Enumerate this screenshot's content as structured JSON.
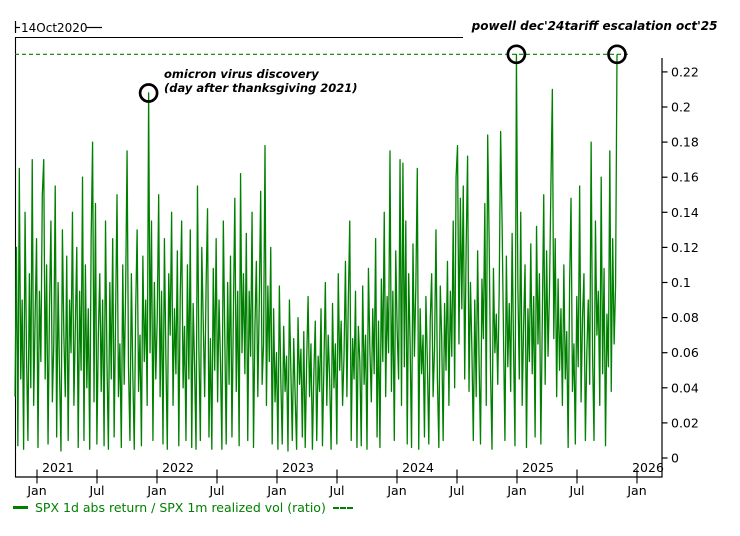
{
  "range_start": {
    "label": "14Oct2020"
  },
  "legend": {
    "label": "SPX 1d abs return / SPX 1m realized vol (ratio)"
  },
  "colors": {
    "series": "#008000",
    "reference_line": "#008000",
    "annotation_ring": "#000000",
    "axis": "#000000"
  },
  "chart_data": {
    "type": "line",
    "title": "",
    "xlabel": "",
    "ylabel": "",
    "x_start_label": "14Oct2020",
    "x_end_label": "oct'25",
    "series": [
      {
        "name": "SPX 1d abs return / SPX 1m realized vol (ratio)",
        "color": "#008000",
        "values": [
          0.035,
          0.12,
          0.007,
          0.165,
          0.045,
          0.09,
          0.005,
          0.14,
          0.06,
          0.01,
          0.105,
          0.04,
          0.17,
          0.03,
          0.08,
          0.125,
          0.006,
          0.095,
          0.055,
          0.15,
          0.17,
          0.045,
          0.11,
          0.008,
          0.085,
          0.135,
          0.032,
          0.065,
          0.155,
          0.012,
          0.1,
          0.048,
          0.004,
          0.13,
          0.07,
          0.035,
          0.115,
          0.01,
          0.09,
          0.06,
          0.14,
          0.03,
          0.075,
          0.12,
          0.006,
          0.095,
          0.05,
          0.16,
          0.01,
          0.11,
          0.04,
          0.085,
          0.005,
          0.125,
          0.18,
          0.032,
          0.145,
          0.008,
          0.07,
          0.105,
          0.038,
          0.09,
          0.007,
          0.135,
          0.055,
          0.005,
          0.1,
          0.045,
          0.125,
          0.012,
          0.08,
          0.15,
          0.035,
          0.065,
          0.006,
          0.11,
          0.042,
          0.095,
          0.175,
          0.052,
          0.01,
          0.105,
          0.048,
          0.005,
          0.085,
          0.13,
          0.038,
          0.07,
          0.007,
          0.115,
          0.055,
          0.09,
          0.03,
          0.208,
          0.06,
          0.135,
          0.01,
          0.1,
          0.045,
          0.08,
          0.15,
          0.035,
          0.095,
          0.008,
          0.125,
          0.058,
          0.005,
          0.105,
          0.07,
          0.14,
          0.03,
          0.085,
          0.048,
          0.118,
          0.007,
          0.092,
          0.135,
          0.04,
          0.075,
          0.01,
          0.11,
          0.045,
          0.13,
          0.006,
          0.088,
          0.052,
          0.005,
          0.155,
          0.062,
          0.01,
          0.12,
          0.078,
          0.035,
          0.098,
          0.142,
          0.012,
          0.068,
          0.005,
          0.108,
          0.05,
          0.125,
          0.032,
          0.09,
          0.055,
          0.005,
          0.135,
          0.07,
          0.008,
          0.1,
          0.042,
          0.115,
          0.012,
          0.082,
          0.148,
          0.038,
          0.095,
          0.007,
          0.162,
          0.06,
          0.105,
          0.048,
          0.128,
          0.01,
          0.095,
          0.058,
          0.14,
          0.006,
          0.075,
          0.112,
          0.035,
          0.088,
          0.152,
          0.042,
          0.065,
          0.178,
          0.03,
          0.098,
          0.055,
          0.12,
          0.008,
          0.085,
          0.032,
          0.06,
          0.005,
          0.098,
          0.045,
          0.008,
          0.075,
          0.038,
          0.058,
          0.004,
          0.09,
          0.05,
          0.01,
          0.068,
          0.035,
          0.005,
          0.08,
          0.042,
          0.062,
          0.012,
          0.072,
          0.006,
          0.055,
          0.092,
          0.035,
          0.065,
          0.005,
          0.048,
          0.078,
          0.01,
          0.058,
          0.038,
          0.085,
          0.007,
          0.052,
          0.1,
          0.03,
          0.07,
          0.045,
          0.005,
          0.088,
          0.04,
          0.065,
          0.008,
          0.105,
          0.05,
          0.078,
          0.03,
          0.058,
          0.112,
          0.035,
          0.09,
          0.135,
          0.01,
          0.068,
          0.045,
          0.095,
          0.006,
          0.075,
          0.055,
          0.007,
          0.098,
          0.042,
          0.07,
          0.005,
          0.108,
          0.062,
          0.032,
          0.085,
          0.048,
          0.125,
          0.012,
          0.078,
          0.006,
          0.102,
          0.055,
          0.14,
          0.035,
          0.092,
          0.06,
          0.175,
          0.038,
          0.095,
          0.01,
          0.118,
          0.072,
          0.045,
          0.17,
          0.03,
          0.168,
          0.052,
          0.135,
          0.008,
          0.105,
          0.065,
          0.006,
          0.122,
          0.058,
          0.098,
          0.165,
          0.005,
          0.085,
          0.048,
          0.07,
          0.012,
          0.092,
          0.055,
          0.008,
          0.078,
          0.105,
          0.035,
          0.062,
          0.13,
          0.045,
          0.006,
          0.098,
          0.068,
          0.01,
          0.088,
          0.05,
          0.112,
          0.03,
          0.095,
          0.058,
          0.135,
          0.04,
          0.16,
          0.178,
          0.065,
          0.148,
          0.085,
          0.155,
          0.045,
          0.12,
          0.172,
          0.038,
          0.1,
          0.062,
          0.01,
          0.09,
          0.035,
          0.118,
          0.055,
          0.008,
          0.102,
          0.068,
          0.145,
          0.03,
          0.184,
          0.125,
          0.048,
          0.005,
          0.108,
          0.06,
          0.082,
          0.042,
          0.095,
          0.186,
          0.135,
          0.07,
          0.01,
          0.115,
          0.052,
          0.088,
          0.038,
          0.128,
          0.062,
          0.007,
          0.23,
          0.098,
          0.045,
          0.14,
          0.03,
          0.075,
          0.11,
          0.006,
          0.085,
          0.055,
          0.122,
          0.048,
          0.092,
          0.012,
          0.132,
          0.065,
          0.105,
          0.008,
          0.078,
          0.15,
          0.042,
          0.118,
          0.058,
          0.095,
          0.155,
          0.21,
          0.068,
          0.125,
          0.035,
          0.102,
          0.05,
          0.085,
          0.03,
          0.11,
          0.045,
          0.072,
          0.006,
          0.098,
          0.148,
          0.038,
          0.065,
          0.008,
          0.092,
          0.052,
          0.155,
          0.032,
          0.08,
          0.105,
          0.01,
          0.06,
          0.09,
          0.042,
          0.18,
          0.058,
          0.01,
          0.135,
          0.07,
          0.095,
          0.03,
          0.16,
          0.048,
          0.108,
          0.007,
          0.082,
          0.052,
          0.175,
          0.038,
          0.125,
          0.065,
          0.098,
          0.23
        ]
      }
    ],
    "reference_line": {
      "value": 0.23,
      "style": "dashed",
      "color": "#008000"
    },
    "y_axis": {
      "side": "right",
      "min": 0,
      "max": 0.235,
      "tick_values": [
        0,
        0.02,
        0.04,
        0.06,
        0.08,
        0.1,
        0.12,
        0.14,
        0.16,
        0.18,
        0.2,
        0.22
      ],
      "tick_labels": [
        "0",
        "0.02",
        "0.04",
        "0.06",
        "0.08",
        "0.1",
        "0.12",
        "0.14",
        "0.16",
        "0.18",
        "0.2",
        "0.22"
      ],
      "grid": false
    },
    "x_axis": {
      "year_labels": [
        "2021",
        "2022",
        "2023",
        "2024",
        "2025",
        "2026"
      ],
      "month_tick_labels": [
        "Jan",
        "Jul",
        "Jan",
        "Jul",
        "Jan",
        "Jul",
        "Jan",
        "Jul",
        "Jan",
        "Jul",
        "Jan"
      ]
    },
    "annotations": [
      {
        "id": "omicron",
        "lines": [
          "omicron virus discovery",
          "(day after thanksgiving 2021)"
        ],
        "point_index": 93,
        "value": 0.208
      },
      {
        "id": "powell",
        "lines": [
          "powell dec'24"
        ],
        "point_index": 349,
        "value": 0.23
      },
      {
        "id": "tariff",
        "lines": [
          "tariff escalation oct'25"
        ],
        "point_index": 419,
        "value": 0.23
      }
    ],
    "legend_position": "bottom-left"
  }
}
